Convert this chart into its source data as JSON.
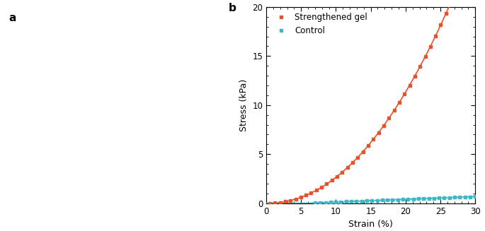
{
  "panel_b_label": "b",
  "panel_a_label": "a",
  "xlabel": "Strain (%)",
  "ylabel": "Stress (kPa)",
  "xlim": [
    0,
    30
  ],
  "ylim": [
    0,
    20
  ],
  "xticks": [
    0,
    5,
    10,
    15,
    20,
    25,
    30
  ],
  "yticks": [
    0,
    5,
    10,
    15,
    20
  ],
  "legend_labels": [
    "Strengthened gel",
    "Control"
  ],
  "line1_color": "#E8522A",
  "line2_color": "#3BB8C8",
  "marker": "s",
  "background_color": "#ffffff",
  "label_fontsize": 9,
  "tick_fontsize": 8.5,
  "legend_fontsize": 8.5,
  "photo_bg": "#b8a882",
  "fig_width": 6.85,
  "fig_height": 3.27
}
